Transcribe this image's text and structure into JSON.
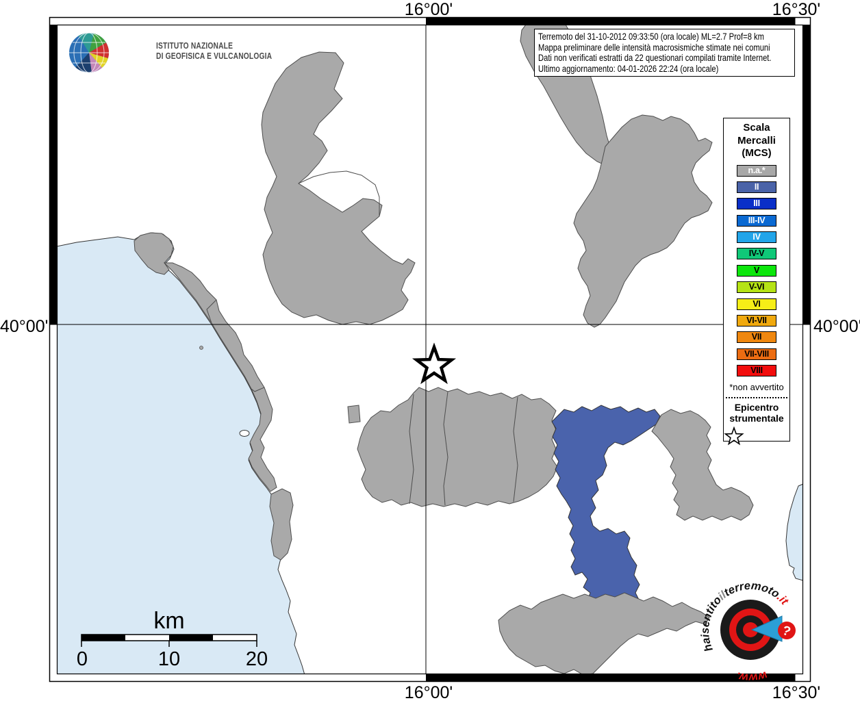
{
  "coords": {
    "top_left": "16°00'",
    "top_right": "16°30'",
    "bottom_left": "16°00'",
    "bottom_right": "16°30'",
    "left": "40°00'",
    "right": "40°00'"
  },
  "ingv": {
    "line1": "ISTITUTO NAZIONALE",
    "line2": "DI GEOFISICA E VULCANOLOGIA"
  },
  "info_box": {
    "line1": "Terremoto del 31-10-2012 09:33:50 (ora locale) ML=2.7 Prof=8 km",
    "line2": "Mappa preliminare delle intensità macrosismiche stimate nei comuni",
    "line3": "Dati non verificati estratti da 22 questionari compilati tramite Internet.",
    "line4": "Ultimo aggiornamento: 04-01-2026 22:24 (ora locale)"
  },
  "legend": {
    "title_line1": "Scala",
    "title_line2": "Mercalli",
    "title_line3": "(MCS)",
    "items": [
      {
        "label": "n.a.*",
        "color": "#a8a8a8",
        "text_color": "#ffffff"
      },
      {
        "label": "II",
        "color": "#4a63a8",
        "text_color": "#ffffff"
      },
      {
        "label": "III",
        "color": "#0a2fc8",
        "text_color": "#ffffff"
      },
      {
        "label": "III-IV",
        "color": "#0a69d2",
        "text_color": "#ffffff"
      },
      {
        "label": "IV",
        "color": "#22a5e9",
        "text_color": "#ffffff"
      },
      {
        "label": "IV-V",
        "color": "#10c878",
        "text_color": "#000000"
      },
      {
        "label": "V",
        "color": "#0ce60c",
        "text_color": "#000000"
      },
      {
        "label": "V-VI",
        "color": "#b5e315",
        "text_color": "#000000"
      },
      {
        "label": "VI",
        "color": "#f6ee17",
        "text_color": "#000000"
      },
      {
        "label": "VI-VII",
        "color": "#f0a90e",
        "text_color": "#000000"
      },
      {
        "label": "VII",
        "color": "#ef870f",
        "text_color": "#000000"
      },
      {
        "label": "VII-VIII",
        "color": "#ec6c12",
        "text_color": "#000000"
      },
      {
        "label": "VIII",
        "color": "#f20d0d",
        "text_color": "#000000"
      }
    ],
    "footnote": "*non avvertito",
    "epicenter_line1": "Epicentro",
    "epicenter_line2": "strumentale"
  },
  "scale_bar": {
    "unit": "km",
    "tick0": "0",
    "tick10": "10",
    "tick20": "20"
  },
  "watermark": {
    "arc_part1": "haisentito",
    "arc_part2": "il",
    "arc_part3": "terremoto",
    "arc_part4": ".it",
    "bottom_text": "www.",
    "question_mark": "?"
  },
  "map": {
    "colors": {
      "sea": "#d9e9f5",
      "land": "#ffffff",
      "na_region": "#a9a9a9",
      "intensity_ii_region": "#4a63ac",
      "region_border": "#4d4d4d",
      "coastline": "#333333"
    },
    "epicenter_symbol": "star"
  }
}
